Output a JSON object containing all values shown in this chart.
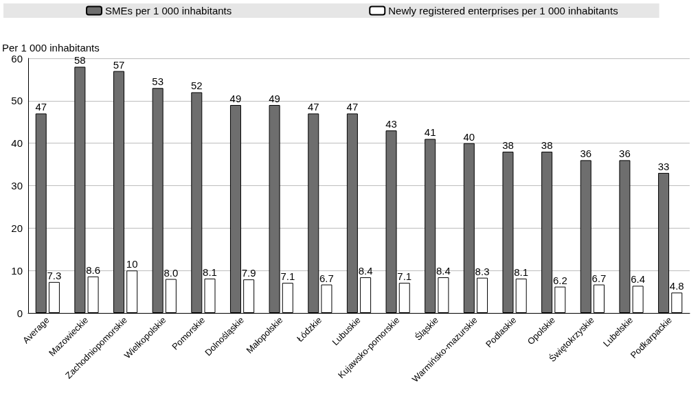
{
  "chart_data": {
    "type": "bar",
    "ylabel": "Per 1 000 inhabitants",
    "categories": [
      "Average",
      "Mazowieckie",
      "Zachodniopomorskie",
      "Wielkopolskie",
      "Pomorskie",
      "Dolnośląskie",
      "Małopolskie",
      "Łódzkie",
      "Lubuskie",
      "Kujawsko-pomorskie",
      "Śląskie",
      "Warmińsko-mazurskie",
      "Podlaskie",
      "Opolskie",
      "Świętokrzyskie",
      "Lubelskie",
      "Podkarpackie"
    ],
    "series": [
      {
        "name": "SMEs per 1 000 inhabitants",
        "color": "#6e6e6e",
        "values": [
          47,
          58,
          57,
          53,
          52,
          49,
          49,
          47,
          47,
          43,
          41,
          40,
          38,
          38,
          36,
          36,
          33
        ],
        "value_labels": [
          "47",
          "58",
          "57",
          "53",
          "52",
          "49",
          "49",
          "47",
          "47",
          "43",
          "41",
          "40",
          "38",
          "38",
          "36",
          "36",
          "33"
        ]
      },
      {
        "name": "Newly registered enterprises per 1 000 inhabitants",
        "color": "#ffffff",
        "values": [
          7.3,
          8.6,
          10,
          8.0,
          8.1,
          7.9,
          7.1,
          6.7,
          8.4,
          7.1,
          8.4,
          8.3,
          8.1,
          6.2,
          6.7,
          6.4,
          4.8
        ],
        "value_labels": [
          "7.3",
          "8.6",
          "10",
          "8.0",
          "8.1",
          "7.9",
          "7.1",
          "6.7",
          "8.4",
          "7.1",
          "8.4",
          "8.3",
          "8.1",
          "6.2",
          "6.7",
          "6.4",
          "4.8"
        ]
      }
    ],
    "ylim": [
      0,
      60
    ],
    "yticks": [
      0,
      10,
      20,
      30,
      40,
      50,
      60
    ],
    "grid": "y",
    "legend": "top"
  }
}
